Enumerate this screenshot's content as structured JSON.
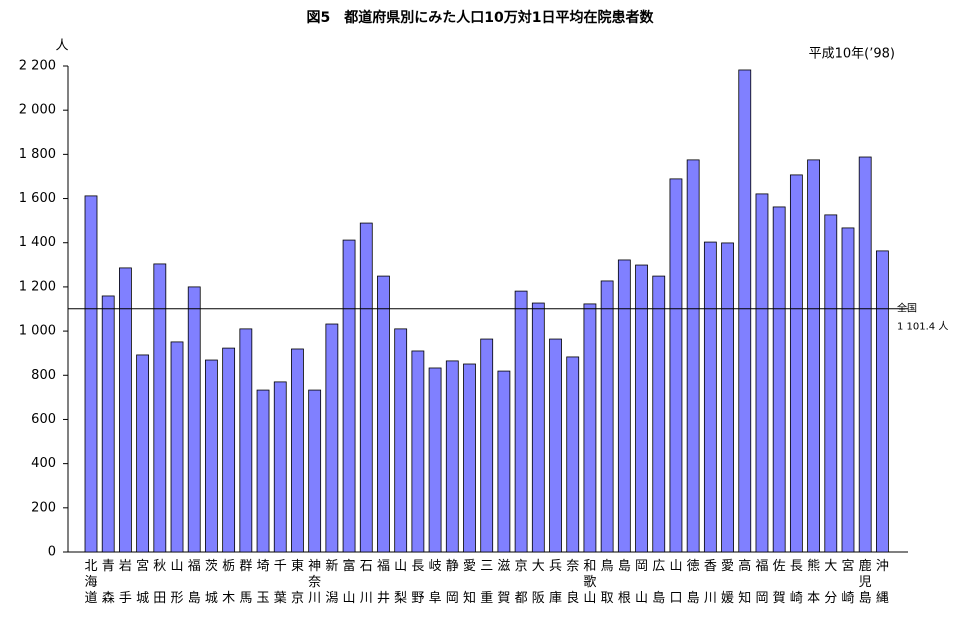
{
  "chart_data": {
    "type": "bar",
    "title": "図5　都道府県別にみた人口10万対1日平均在院患者数",
    "subtitle": "平成10年(’98)",
    "y_label": "人",
    "categories": [
      "北海道",
      "青森",
      "岩手",
      "宮城",
      "秋田",
      "山形",
      "福島",
      "茨城",
      "栃木",
      "群馬",
      "埼玉",
      "千葉",
      "東京",
      "神奈川",
      "新潟",
      "富山",
      "石川",
      "福井",
      "山梨",
      "長野",
      "岐阜",
      "静岡",
      "愛知",
      "三重",
      "滋賀",
      "京都",
      "大阪",
      "兵庫",
      "奈良",
      "和歌山",
      "鳥取",
      "島根",
      "岡山",
      "広島",
      "山口",
      "徳島",
      "香川",
      "愛媛",
      "高知",
      "福岡",
      "佐賀",
      "長崎",
      "熊本",
      "大分",
      "宮崎",
      "鹿児島",
      "沖縄"
    ],
    "values": [
      1612,
      1159,
      1286,
      892,
      1304,
      951,
      1200,
      869,
      923,
      1010,
      733,
      770,
      919,
      733,
      1032,
      1412,
      1489,
      1249,
      1010,
      910,
      833,
      865,
      851,
      964,
      819,
      1181,
      1127,
      964,
      883,
      1123,
      1227,
      1322,
      1299,
      1249,
      1689,
      1775,
      1403,
      1399,
      2182,
      1621,
      1562,
      1707,
      1775,
      1526,
      1467,
      1788,
      1363
    ],
    "color": "#8080ff",
    "ylim": [
      0,
      2200
    ],
    "yticks": [
      0,
      200,
      400,
      600,
      800,
      {
        "value": 1000,
        "label": "1 000"
      },
      {
        "value": 1200,
        "label": "1 200"
      },
      {
        "value": 1400,
        "label": "1 400"
      },
      {
        "value": 1600,
        "label": "1 600"
      },
      {
        "value": 1800,
        "label": "1 800"
      },
      {
        "value": 2000,
        "label": "2 000"
      },
      {
        "value": 2200,
        "label": "2 200"
      }
    ],
    "grid": false,
    "reference_line": {
      "label": "全国",
      "value": 1101.4,
      "value_label": "1 101.4 人"
    }
  }
}
